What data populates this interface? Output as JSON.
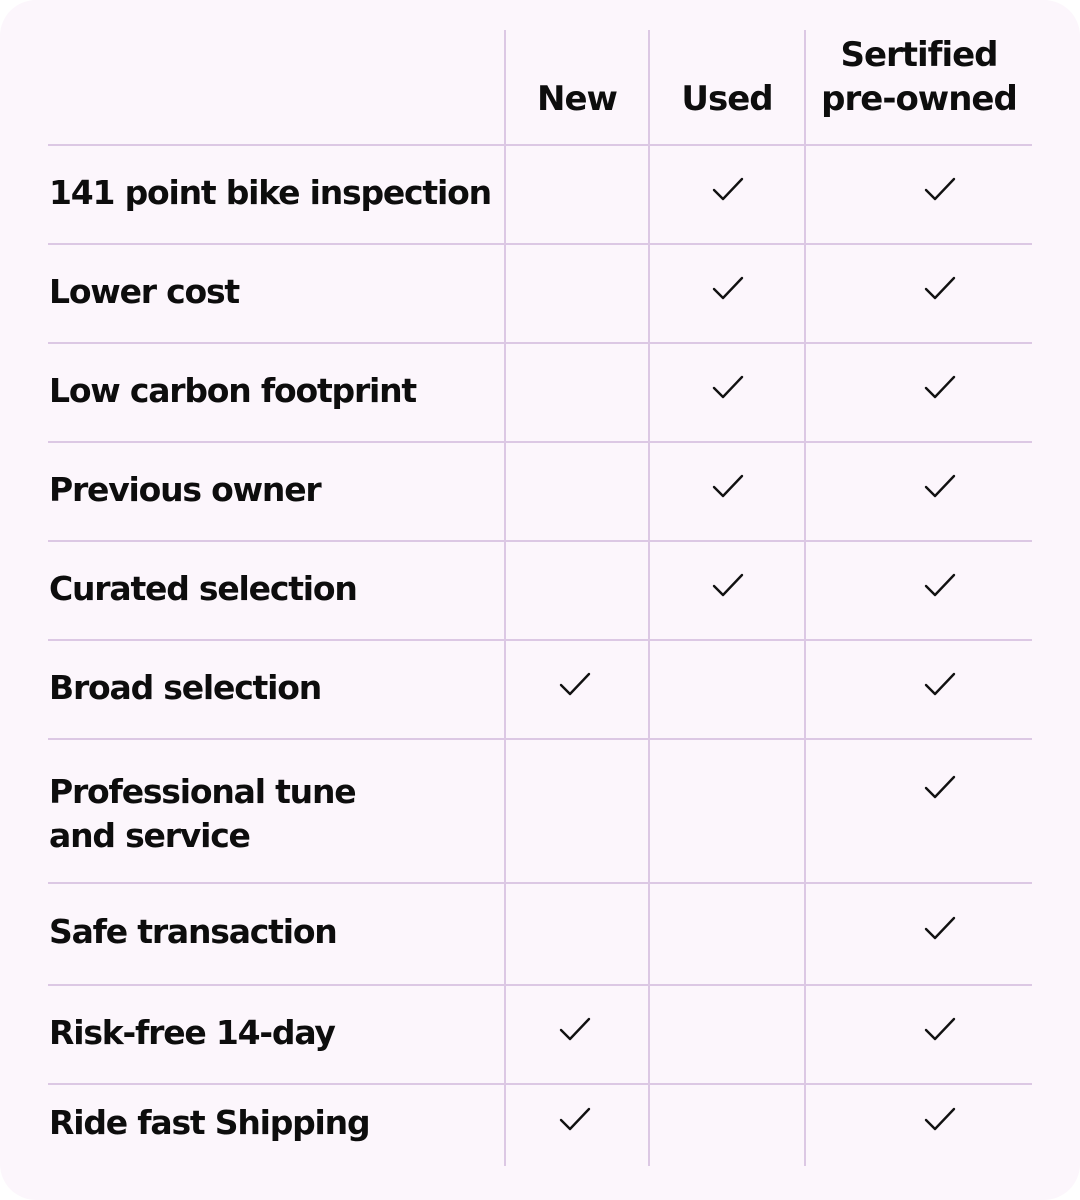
{
  "columns": [
    "New",
    "Used",
    "Sertified pre-owned"
  ],
  "columns_lines": [
    [
      "New"
    ],
    [
      "Used"
    ],
    [
      "Sertified",
      "pre-owned"
    ]
  ],
  "colors": {
    "background": "#fcf6fc",
    "grid": "#dcc8e4",
    "text": "#0d0d0d"
  },
  "rows": [
    {
      "label": "141 point bike inspection",
      "new": false,
      "used": true,
      "certified": true
    },
    {
      "label": "Lower cost",
      "new": false,
      "used": true,
      "certified": true
    },
    {
      "label": "Low carbon footprint",
      "new": false,
      "used": true,
      "certified": true
    },
    {
      "label": "Previous owner",
      "new": false,
      "used": true,
      "certified": true
    },
    {
      "label": "Curated selection",
      "new": false,
      "used": true,
      "certified": true
    },
    {
      "label": "Broad selection",
      "new": true,
      "used": false,
      "certified": true
    },
    {
      "label": "Professional tune and service",
      "label_lines": [
        "Professional tune",
        "and service"
      ],
      "new": false,
      "used": false,
      "certified": true
    },
    {
      "label": "Safe transaction",
      "new": false,
      "used": false,
      "certified": true
    },
    {
      "label": "Risk-free 14-day",
      "new": true,
      "used": false,
      "certified": true
    },
    {
      "label": "Ride fast Shipping",
      "new": true,
      "used": false,
      "certified": true
    }
  ],
  "icons": {
    "check": "checkmark-icon"
  }
}
